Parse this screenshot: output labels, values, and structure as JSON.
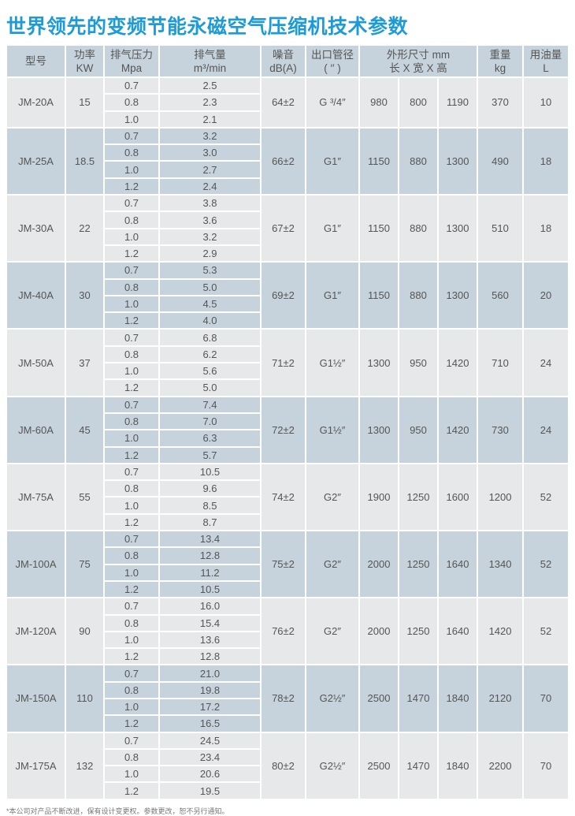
{
  "title": "世界领先的变频节能永磁空气压缩机技术参数",
  "colors": {
    "title": "#1c9bd7",
    "header_bg": "#c7d3dc",
    "row_alt_bg": "#c7d3dc",
    "row_bg": "#e6e8ea"
  },
  "headers": {
    "model": "型号",
    "power": [
      "功率",
      "KW"
    ],
    "pressure": [
      "排气压力",
      "Mpa"
    ],
    "flow": [
      "排气量",
      "m³/min"
    ],
    "noise": [
      "噪音",
      "dB(A)"
    ],
    "outlet": [
      "出口管径",
      "( ′′ )"
    ],
    "dims": [
      "外形尺寸 mm",
      "长 X 宽 X 高"
    ],
    "weight": [
      "重量",
      "kg"
    ],
    "oil": [
      "用油量",
      "L"
    ]
  },
  "rows": [
    {
      "model": "JM-20A",
      "power": "15",
      "pressures": [
        "0.7",
        "0.8",
        "1.0"
      ],
      "flows": [
        "2.5",
        "2.3",
        "2.1"
      ],
      "noise": "64±2",
      "outlet": "G ³/4″",
      "l": "980",
      "w": "800",
      "h": "1190",
      "weight": "370",
      "oil": "10"
    },
    {
      "model": "JM-25A",
      "power": "18.5",
      "pressures": [
        "0.7",
        "0.8",
        "1.0",
        "1.2"
      ],
      "flows": [
        "3.2",
        "3.0",
        "2.7",
        "2.4"
      ],
      "noise": "66±2",
      "outlet": "G1″",
      "l": "1150",
      "w": "880",
      "h": "1300",
      "weight": "490",
      "oil": "18"
    },
    {
      "model": "JM-30A",
      "power": "22",
      "pressures": [
        "0.7",
        "0.8",
        "1.0",
        "1.2"
      ],
      "flows": [
        "3.8",
        "3.6",
        "3.2",
        "2.9"
      ],
      "noise": "67±2",
      "outlet": "G1″",
      "l": "1150",
      "w": "880",
      "h": "1300",
      "weight": "510",
      "oil": "18"
    },
    {
      "model": "JM-40A",
      "power": "30",
      "pressures": [
        "0.7",
        "0.8",
        "1.0",
        "1.2"
      ],
      "flows": [
        "5.3",
        "5.0",
        "4.5",
        "4.0"
      ],
      "noise": "69±2",
      "outlet": "G1″",
      "l": "1150",
      "w": "880",
      "h": "1300",
      "weight": "560",
      "oil": "20"
    },
    {
      "model": "JM-50A",
      "power": "37",
      "pressures": [
        "0.7",
        "0.8",
        "1.0",
        "1.2"
      ],
      "flows": [
        "6.8",
        "6.2",
        "5.6",
        "5.0"
      ],
      "noise": "71±2",
      "outlet": "G1½″",
      "l": "1300",
      "w": "950",
      "h": "1420",
      "weight": "710",
      "oil": "24"
    },
    {
      "model": "JM-60A",
      "power": "45",
      "pressures": [
        "0.7",
        "0.8",
        "1.0",
        "1.2"
      ],
      "flows": [
        "7.4",
        "7.0",
        "6.3",
        "5.7"
      ],
      "noise": "72±2",
      "outlet": "G1½″",
      "l": "1300",
      "w": "950",
      "h": "1420",
      "weight": "730",
      "oil": "24"
    },
    {
      "model": "JM-75A",
      "power": "55",
      "pressures": [
        "0.7",
        "0.8",
        "1.0",
        "1.2"
      ],
      "flows": [
        "10.5",
        "9.6",
        "8.5",
        "8.7"
      ],
      "noise": "74±2",
      "outlet": "G2″",
      "l": "1900",
      "w": "1250",
      "h": "1600",
      "weight": "1200",
      "oil": "52"
    },
    {
      "model": "JM-100A",
      "power": "75",
      "pressures": [
        "0.7",
        "0.8",
        "1.0",
        "1.2"
      ],
      "flows": [
        "13.4",
        "12.8",
        "11.2",
        "10.5"
      ],
      "noise": "75±2",
      "outlet": "G2″",
      "l": "2000",
      "w": "1250",
      "h": "1640",
      "weight": "1340",
      "oil": "52"
    },
    {
      "model": "JM-120A",
      "power": "90",
      "pressures": [
        "0.7",
        "0.8",
        "1.0",
        "1.2"
      ],
      "flows": [
        "16.0",
        "15.4",
        "13.6",
        "12.8"
      ],
      "noise": "76±2",
      "outlet": "G2″",
      "l": "2000",
      "w": "1250",
      "h": "1640",
      "weight": "1420",
      "oil": "52"
    },
    {
      "model": "JM-150A",
      "power": "110",
      "pressures": [
        "0.7",
        "0.8",
        "1.0",
        "1.2"
      ],
      "flows": [
        "21.0",
        "19.8",
        "17.2",
        "16.5"
      ],
      "noise": "78±2",
      "outlet": "G2½″",
      "l": "2500",
      "w": "1470",
      "h": "1840",
      "weight": "2120",
      "oil": "70"
    },
    {
      "model": "JM-175A",
      "power": "132",
      "pressures": [
        "0.7",
        "0.8",
        "1.0",
        "1.2"
      ],
      "flows": [
        "24.5",
        "23.4",
        "20.6",
        "19.5"
      ],
      "noise": "80±2",
      "outlet": "G2½″",
      "l": "2500",
      "w": "1470",
      "h": "1840",
      "weight": "2200",
      "oil": "70"
    }
  ],
  "footnote": "*本公司对产品不断改进，保有设计变更权。参数更改，恕不另行通知。"
}
